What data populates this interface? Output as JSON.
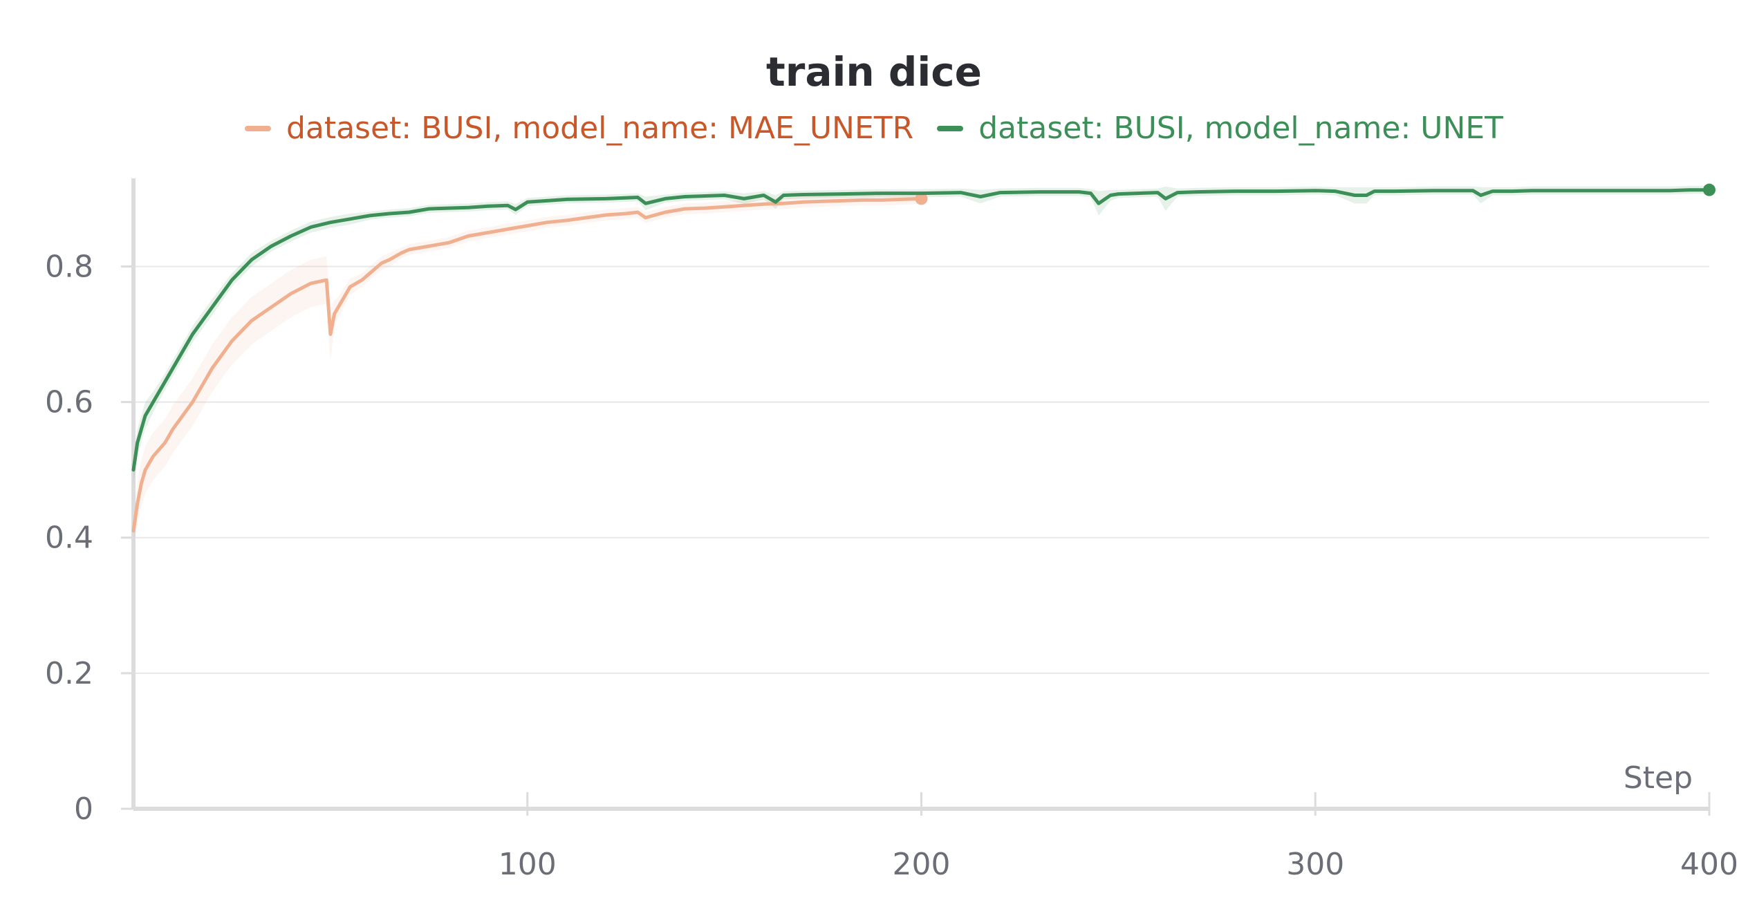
{
  "colors": {
    "background": "#ffffff",
    "grid": "#e8e8ea",
    "axis": "#dcdcde",
    "tick_text": "#6b6e76",
    "title_text": "#2b2d33"
  },
  "chart_data": {
    "type": "line",
    "title": "train dice",
    "xlabel": "Step",
    "ylabel": "",
    "xlim": [
      0,
      400
    ],
    "ylim": [
      0,
      0.93
    ],
    "x_ticks": [
      100,
      200,
      300,
      400
    ],
    "x_tick_labels": [
      "100",
      "200",
      "300",
      "400"
    ],
    "y_ticks": [
      0,
      0.2,
      0.4,
      0.6,
      0.8
    ],
    "y_tick_labels": [
      "0",
      "0.2",
      "0.4",
      "0.6",
      "0.8"
    ],
    "grid": true,
    "legend_position": "top-center",
    "series": [
      {
        "name": "dataset: BUSI, model_name: MAE_UNETR",
        "color": "#f0b090",
        "legend_text_color": "#c8582a",
        "x": [
          0,
          1,
          2,
          3,
          5,
          8,
          10,
          15,
          20,
          25,
          30,
          35,
          40,
          45,
          49,
          50,
          51,
          52,
          53,
          55,
          58,
          60,
          63,
          65,
          68,
          70,
          75,
          80,
          85,
          90,
          95,
          100,
          105,
          110,
          115,
          120,
          125,
          128,
          130,
          135,
          140,
          145,
          150,
          155,
          160,
          165,
          170,
          175,
          180,
          185,
          190,
          195,
          200
        ],
        "y": [
          0.41,
          0.45,
          0.48,
          0.5,
          0.52,
          0.54,
          0.56,
          0.6,
          0.65,
          0.69,
          0.72,
          0.74,
          0.76,
          0.775,
          0.78,
          0.7,
          0.73,
          0.74,
          0.75,
          0.77,
          0.78,
          0.79,
          0.805,
          0.81,
          0.82,
          0.825,
          0.83,
          0.835,
          0.845,
          0.85,
          0.855,
          0.86,
          0.865,
          0.868,
          0.872,
          0.876,
          0.878,
          0.88,
          0.872,
          0.88,
          0.885,
          0.886,
          0.888,
          0.89,
          0.892,
          0.893,
          0.895,
          0.896,
          0.897,
          0.898,
          0.898,
          0.899,
          0.9
        ],
        "band": [
          0.02,
          0.03,
          0.035,
          0.035,
          0.035,
          0.035,
          0.035,
          0.035,
          0.035,
          0.035,
          0.035,
          0.035,
          0.035,
          0.035,
          0.035,
          0.04,
          0.02,
          0.015,
          0.015,
          0.012,
          0.01,
          0.01,
          0.01,
          0.01,
          0.008,
          0.008,
          0.008,
          0.008,
          0.008,
          0.008,
          0.008,
          0.008,
          0.008,
          0.008,
          0.008,
          0.008,
          0.008,
          0.008,
          0.008,
          0.008,
          0.008,
          0.008,
          0.008,
          0.008,
          0.008,
          0.008,
          0.008,
          0.008,
          0.008,
          0.008,
          0.008,
          0.008,
          0.008
        ]
      },
      {
        "name": "dataset: BUSI, model_name: UNET",
        "color": "#3d8f58",
        "legend_text_color": "#3d8f58",
        "x": [
          0,
          1,
          2,
          3,
          5,
          8,
          10,
          15,
          20,
          25,
          30,
          35,
          40,
          45,
          50,
          55,
          60,
          65,
          70,
          75,
          80,
          85,
          90,
          95,
          97,
          100,
          105,
          110,
          120,
          128,
          130,
          135,
          140,
          150,
          155,
          160,
          163,
          165,
          170,
          180,
          190,
          200,
          210,
          215,
          220,
          230,
          240,
          243,
          245,
          248,
          250,
          260,
          262,
          265,
          270,
          280,
          290,
          300,
          305,
          310,
          313,
          315,
          320,
          330,
          340,
          342,
          345,
          350,
          355,
          360,
          370,
          380,
          390,
          395,
          400
        ],
        "y": [
          0.5,
          0.54,
          0.56,
          0.58,
          0.6,
          0.63,
          0.65,
          0.7,
          0.74,
          0.78,
          0.81,
          0.83,
          0.845,
          0.858,
          0.865,
          0.87,
          0.875,
          0.878,
          0.88,
          0.885,
          0.886,
          0.887,
          0.889,
          0.89,
          0.884,
          0.895,
          0.897,
          0.899,
          0.9,
          0.902,
          0.893,
          0.9,
          0.903,
          0.905,
          0.9,
          0.905,
          0.895,
          0.905,
          0.906,
          0.907,
          0.908,
          0.908,
          0.909,
          0.903,
          0.909,
          0.91,
          0.91,
          0.908,
          0.893,
          0.905,
          0.907,
          0.909,
          0.9,
          0.909,
          0.91,
          0.911,
          0.911,
          0.912,
          0.911,
          0.905,
          0.905,
          0.911,
          0.911,
          0.912,
          0.912,
          0.905,
          0.911,
          0.911,
          0.912,
          0.912,
          0.912,
          0.912,
          0.912,
          0.913,
          0.913
        ],
        "band": [
          0.02,
          0.02,
          0.02,
          0.02,
          0.015,
          0.012,
          0.012,
          0.012,
          0.012,
          0.01,
          0.01,
          0.008,
          0.008,
          0.008,
          0.008,
          0.008,
          0.006,
          0.006,
          0.006,
          0.006,
          0.006,
          0.006,
          0.006,
          0.006,
          0.008,
          0.006,
          0.006,
          0.006,
          0.006,
          0.006,
          0.01,
          0.006,
          0.006,
          0.006,
          0.008,
          0.006,
          0.01,
          0.006,
          0.006,
          0.006,
          0.006,
          0.006,
          0.006,
          0.01,
          0.006,
          0.006,
          0.006,
          0.006,
          0.018,
          0.008,
          0.006,
          0.006,
          0.018,
          0.006,
          0.006,
          0.006,
          0.006,
          0.006,
          0.006,
          0.012,
          0.012,
          0.006,
          0.006,
          0.006,
          0.006,
          0.012,
          0.006,
          0.006,
          0.006,
          0.006,
          0.006,
          0.006,
          0.006,
          0.006,
          0.006
        ]
      }
    ]
  }
}
